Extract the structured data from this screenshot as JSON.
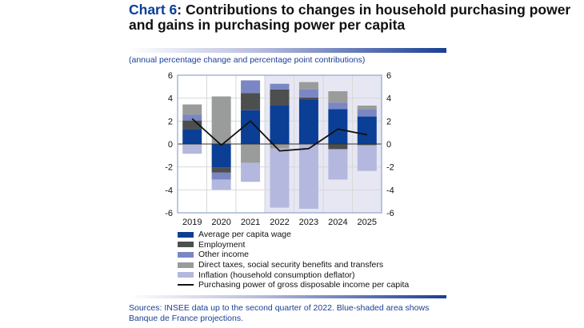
{
  "title": {
    "number": "Chart 6",
    "text": ": Contributions to changes in household purchasing power and gains in purchasing power per capita"
  },
  "subtitle": "(annual percentage change and percentage point contributions)",
  "sources": "Sources: INSEE data up to the second quarter of 2022. Blue-shaded area shows Banque de France projections.",
  "chart_data": {
    "type": "bar",
    "stacked": true,
    "categories": [
      "2019",
      "2020",
      "2021",
      "2022",
      "2023",
      "2024",
      "2025"
    ],
    "ylim": [
      -6,
      6
    ],
    "yticks": [
      -6,
      -4,
      -2,
      0,
      2,
      4,
      6
    ],
    "grid": true,
    "projection_shaded_from": "2022",
    "series": [
      {
        "name": "Average per capita wage",
        "color": "#0a3f95",
        "values": [
          1.3,
          -2.05,
          2.95,
          3.35,
          3.9,
          3.05,
          2.4
        ]
      },
      {
        "name": "Employment",
        "color": "#4d4e4e",
        "values": [
          0.75,
          -0.45,
          1.5,
          1.4,
          0.15,
          -0.45,
          -0.1
        ]
      },
      {
        "name": "Other income",
        "color": "#7b86c4",
        "values": [
          0.5,
          -0.6,
          1.1,
          0.5,
          0.7,
          0.55,
          0.6
        ]
      },
      {
        "name": "Direct taxes, social security benefits and transfers",
        "color": "#9a9c9c",
        "values": [
          0.9,
          4.15,
          -1.65,
          -0.4,
          0.65,
          1.0,
          0.35
        ]
      },
      {
        "name": "Inflation (household consumption deflator)",
        "color": "#b4b8de",
        "values": [
          -0.85,
          -0.9,
          -1.65,
          -5.15,
          -5.65,
          -2.65,
          -2.25
        ]
      }
    ],
    "line": {
      "name": "Purchasing power of gross disposable income per capita",
      "color": "#111111",
      "values": [
        2.2,
        -0.1,
        2.0,
        -0.6,
        -0.4,
        1.3,
        0.8
      ]
    }
  }
}
